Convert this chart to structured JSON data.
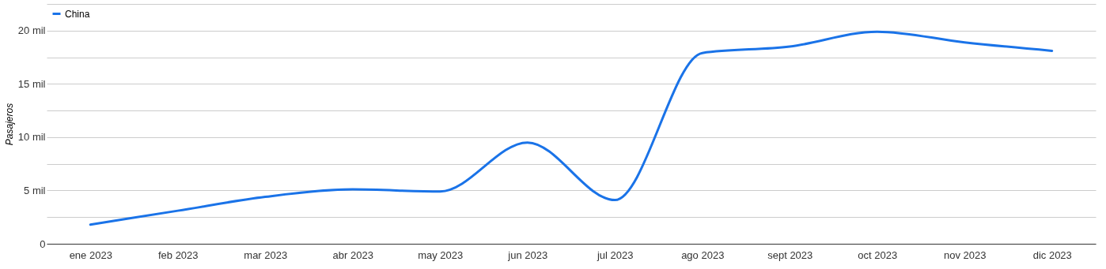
{
  "chart_data": {
    "type": "line",
    "ylabel": "Pasajeros",
    "categories": [
      "ene 2023",
      "feb 2023",
      "mar 2023",
      "abr 2023",
      "may 2023",
      "jun 2023",
      "jul 2023",
      "ago 2023",
      "sept 2023",
      "oct 2023",
      "nov 2023",
      "dic 2023"
    ],
    "series": [
      {
        "name": "China",
        "color": "#1a73e8",
        "values": [
          1.8,
          3.1,
          4.4,
          5.1,
          4.9,
          9.5,
          4.1,
          17.9,
          18.5,
          19.9,
          18.9,
          18.1
        ]
      }
    ],
    "ylim": [
      0,
      22.5
    ],
    "yticks": [
      0,
      {
        "value": 2.5,
        "label": null
      },
      {
        "value": 5,
        "label": "5 mil"
      },
      {
        "value": 7.5,
        "label": null
      },
      {
        "value": 10,
        "label": "10 mil"
      },
      {
        "value": 12.5,
        "label": null
      },
      {
        "value": 15,
        "label": "15 mil"
      },
      {
        "value": 17.5,
        "label": null
      },
      {
        "value": 20,
        "label": "20 mil"
      },
      {
        "value": 22.5,
        "label": null
      }
    ],
    "grid": "y",
    "legend": "top left",
    "marker": "none",
    "line_style": "solid"
  }
}
